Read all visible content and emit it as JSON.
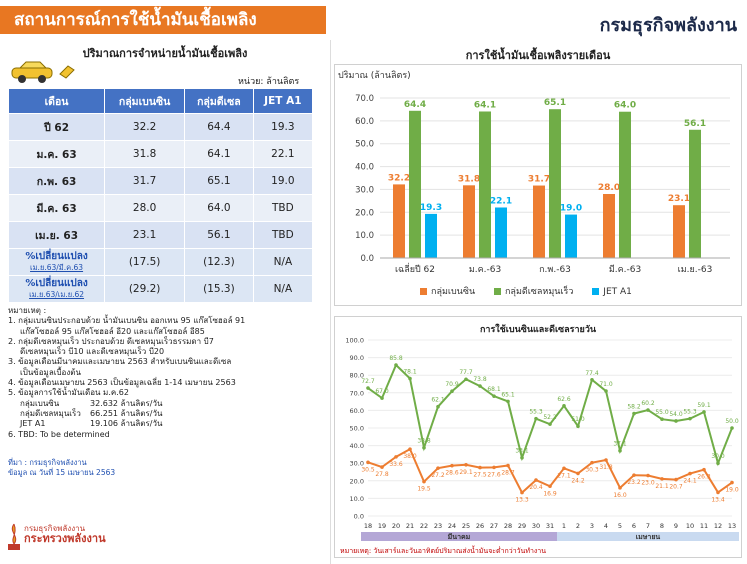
{
  "header": {
    "title": "สถานการณ์การใช้น้ำมันเชื้อเพลิง",
    "org": "กรมธุรกิจพลังงาน"
  },
  "table": {
    "subtitle": "ปริมาณการจำหน่ายน้ำมันเชื้อเพลิง",
    "unit": "หน่วย: ล้านลิตร",
    "headers": [
      "เดือน",
      "กลุ่มเบนซิน",
      "กลุ่มดีเซล",
      "JET A1"
    ],
    "rows": [
      [
        "ปี 62",
        "32.2",
        "64.4",
        "19.3"
      ],
      [
        "ม.ค. 63",
        "31.8",
        "64.1",
        "22.1"
      ],
      [
        "ก.พ. 63",
        "31.7",
        "65.1",
        "19.0"
      ],
      [
        "มี.ค. 63",
        "28.0",
        "64.0",
        "TBD"
      ],
      [
        "เม.ย. 63",
        "23.1",
        "56.1",
        "TBD"
      ]
    ],
    "pct": [
      {
        "label": "%เปลี่ยนแปลง",
        "sub": "เม.ย.63/มี.ค.63",
        "v": [
          "(17.5)",
          "(12.3)",
          "N/A"
        ]
      },
      {
        "label": "%เปลี่ยนแปลง",
        "sub": "เม.ย.63/เม.ย.62",
        "v": [
          "(29.2)",
          "(15.3)",
          "N/A"
        ]
      }
    ]
  },
  "notes": {
    "head": "หมายเหตุ :",
    "lines": [
      "1. กลุ่มเบนซินประกอบด้วย น้ำมันเบนซิน ออกเทน 95 แก๊สโซฮอล์ 91",
      "   แก๊สโซฮอล์ 95 แก๊สโซฮอล์ อี20 และแก๊สโซฮอล์ อี85",
      "2. กลุ่มดีเซลหมุนเร็ว ประกอบด้วย ดีเซลหมุนเร็วธรรมดา บี7",
      "   ดีเซลหมุนเร็ว บี10 และดีเซลหมุนเร็ว บี20",
      "3. ข้อมูลเดือนมีนาคมและเมษายน 2563 สำหรับเบนซินและดีเซล",
      "   เป็นข้อมูลเบื้องต้น",
      "4. ข้อมูลเดือนเมษายน 2563 เป็นข้อมูลเฉลี่ย 1-14 เมษายน 2563",
      "5. ข้อมูลการใช้น้ำมันเดือน ม.ค.62"
    ],
    "avg": [
      {
        "k": "กลุ่มเบนซิน",
        "v": "32.632 ล้านลิตร/วัน"
      },
      {
        "k": "กลุ่มดีเซลหมุนเร็ว",
        "v": "66.251 ล้านลิตร/วัน"
      },
      {
        "k": "JET A1",
        "v": "19.106 ล้านลิตร/วัน"
      }
    ],
    "last": "6. TBD: To be determined"
  },
  "source": {
    "l1": "ที่มา : กรมธุรกิจพลังงาน",
    "l2": "ข้อมูล ณ วันที่ 15 เมษายน 2563"
  },
  "logo": {
    "l1": "กรมธุรกิจพลังงาน",
    "l2": "กระทรวงพลังงาน"
  },
  "colors": {
    "orange": "#ed7d31",
    "green": "#70ad47",
    "blue": "#00b0f0",
    "header": "#e87722",
    "table": "#4472c4"
  },
  "chart_data": [
    {
      "type": "bar",
      "title": "การใช้น้ำมันเชื้อเพลิงรายเดือน",
      "ylabel": "ปริมาณ (ล้านลิตร)",
      "ylim": [
        0,
        70
      ],
      "yticks": [
        "0.0",
        "10.0",
        "20.0",
        "30.0",
        "40.0",
        "50.0",
        "60.0",
        "70.0"
      ],
      "categories": [
        "เฉลี่ยปี 62",
        "ม.ค.-63",
        "ก.พ.-63",
        "มี.ค.-63",
        "เม.ย.-63"
      ],
      "series": [
        {
          "name": "กลุ่มเบนซิน",
          "values": [
            32.2,
            31.8,
            31.7,
            28.0,
            23.1
          ]
        },
        {
          "name": "กลุ่มดีเซลหมุนเร็ว",
          "values": [
            64.4,
            64.1,
            65.1,
            64.0,
            56.1
          ]
        },
        {
          "name": "JET A1",
          "values": [
            19.3,
            22.1,
            19.0,
            null,
            null
          ]
        }
      ],
      "legend": "bottom"
    },
    {
      "type": "line",
      "title": "การใช้เบนซินและดีเซลรายวัน",
      "ylim": [
        0,
        100
      ],
      "yticks": [
        "0.0",
        "10.0",
        "20.0",
        "30.0",
        "40.0",
        "50.0",
        "60.0",
        "70.0",
        "80.0",
        "90.0",
        "100.0"
      ],
      "x": [
        "18",
        "19",
        "20",
        "21",
        "22",
        "23",
        "24",
        "25",
        "26",
        "27",
        "28",
        "29",
        "30",
        "31",
        "1",
        "2",
        "3",
        "4",
        "5",
        "6",
        "7",
        "8",
        "9",
        "10",
        "11",
        "12",
        "13"
      ],
      "series": [
        {
          "name": "ดีเซล",
          "values": [
            72.7,
            67.0,
            85.8,
            78.1,
            38.8,
            62.1,
            70.9,
            77.7,
            73.8,
            68.1,
            65.1,
            33.1,
            55.3,
            52.2,
            62.6,
            51.0,
            77.4,
            71.0,
            37.1,
            58.2,
            60.2,
            55.0,
            54.0,
            55.3,
            59.1,
            30.0,
            50.0
          ]
        },
        {
          "name": "เบนซิน",
          "values": [
            30.5,
            27.8,
            33.6,
            38.0,
            19.5,
            27.2,
            28.6,
            29.1,
            27.5,
            27.6,
            28.7,
            13.3,
            20.4,
            16.9,
            27.1,
            24.2,
            30.3,
            31.8,
            16.0,
            23.2,
            23.0,
            21.1,
            20.7,
            24.1,
            26.3,
            13.4,
            19.0
          ]
        }
      ],
      "labels_diesel": [
        "72.7",
        "67.0",
        "85.8",
        "78.1",
        "38.8",
        "62.1",
        "70.9",
        "77.7",
        "73.8",
        "68.1",
        "65.1",
        "33.1",
        "55.3",
        "52.2",
        "62.6",
        "51.0",
        "77.4",
        "71.0",
        "37.1",
        "58.2",
        "60.2",
        "55.0",
        "54.0",
        "55.3",
        "59.1",
        "30.0",
        "50.0"
      ],
      "labels_benzin": [
        "30.5",
        "27.8",
        "33.6",
        "38.0",
        "19.5",
        "27.2",
        "28.6",
        "29.1",
        "27.5",
        "27.6",
        "28.7",
        "13.3",
        "20.4",
        "16.9",
        "27.1",
        "24.2",
        "30.3",
        "31.8",
        "16.0",
        "23.2",
        "23.0",
        "21.1",
        "20.7",
        "24.1",
        "26.3",
        "13.4",
        "19.0"
      ],
      "months": [
        {
          "label": "มีนาคม",
          "from": 0,
          "to": 13
        },
        {
          "label": "เมษายน",
          "from": 14,
          "to": 26
        }
      ]
    }
  ],
  "footnote": "หมายเหตุ: วันเสาร์และวันอาทิตย์ปริมาณส่งน้ำมันจะต่ำกว่าวันทำงาน"
}
